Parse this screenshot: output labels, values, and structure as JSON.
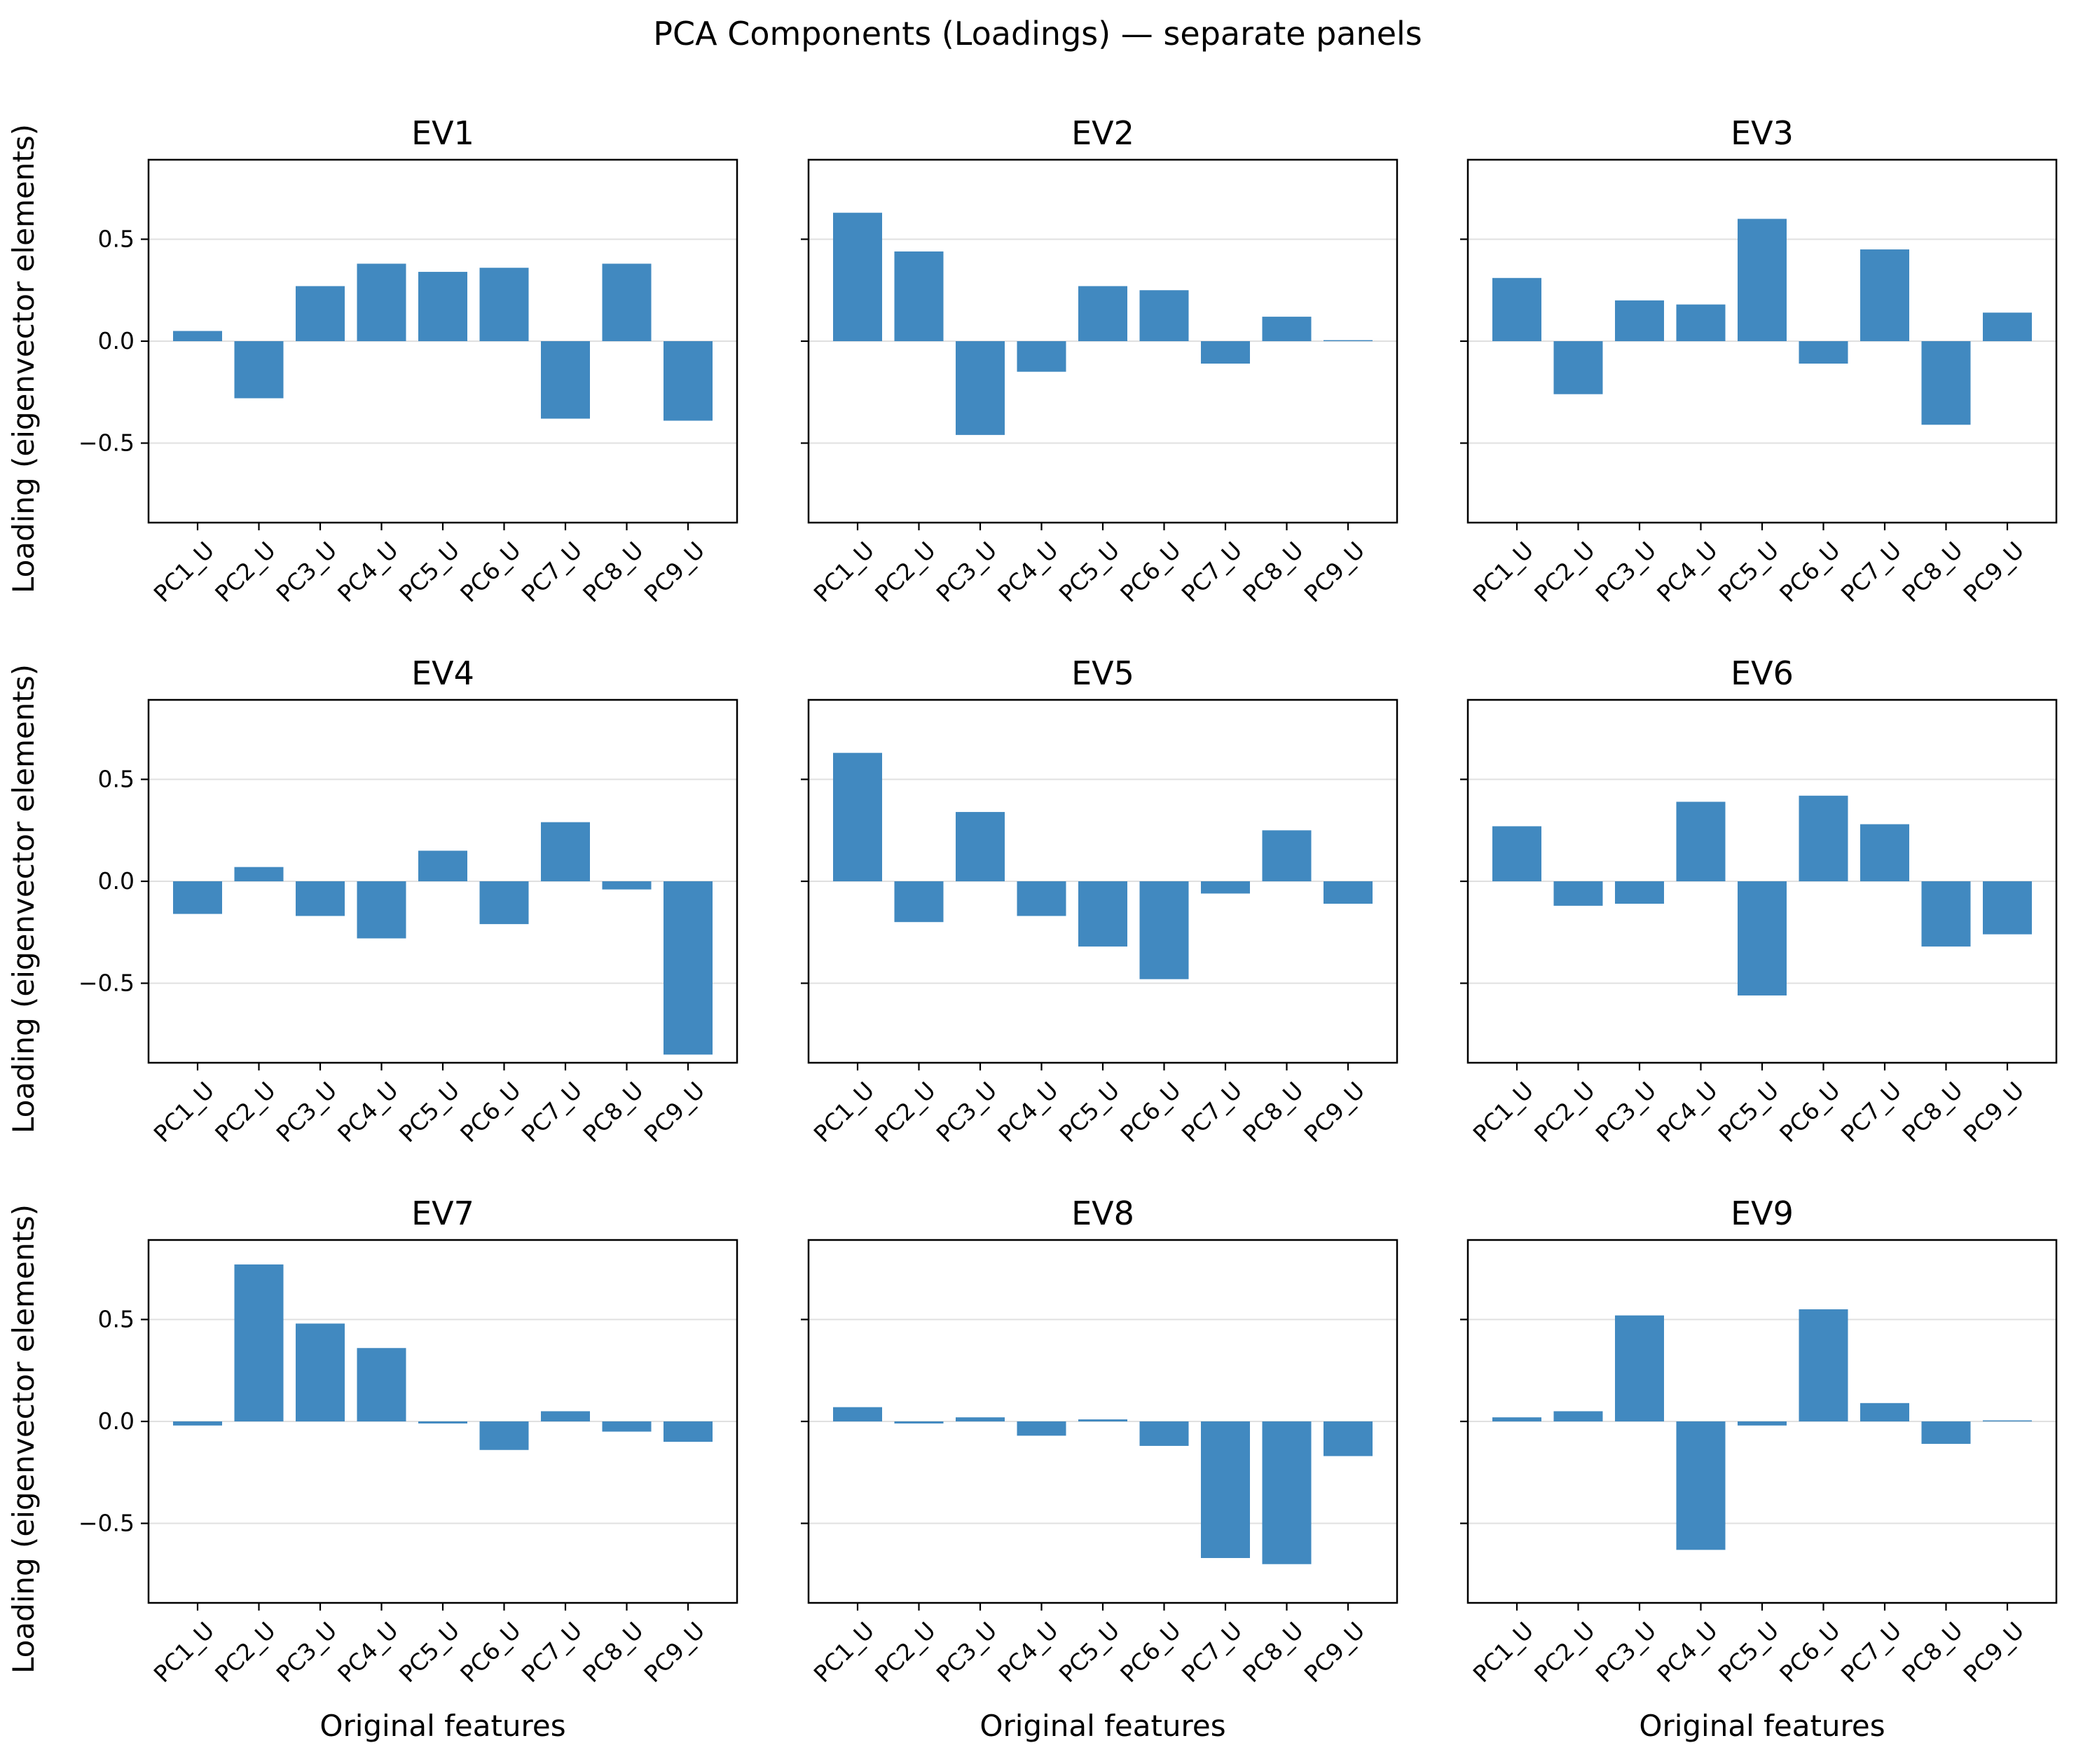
{
  "figure": {
    "suptitle": "PCA Components (Loadings) — separate panels",
    "ylabel": "Loading (eigenvector elements)",
    "xlabel": "Original features",
    "bar_color": "#4189c0"
  },
  "chart_data": {
    "type": "bar",
    "layout": "3x3 grid of panels, shared y axis",
    "categories": [
      "PC1_U",
      "PC2_U",
      "PC3_U",
      "PC4_U",
      "PC5_U",
      "PC6_U",
      "PC7_U",
      "PC8_U",
      "PC9_U"
    ],
    "ylim": [
      -0.89,
      0.89
    ],
    "yticks": [
      -0.5,
      0.0,
      0.5
    ],
    "ytick_labels": [
      "−0.5",
      "0.0",
      "0.5"
    ],
    "grid": "horizontal, at y ticks",
    "panels": [
      {
        "title": "EV1",
        "values": [
          0.05,
          -0.28,
          0.27,
          0.38,
          0.34,
          0.36,
          -0.38,
          0.38,
          -0.39
        ]
      },
      {
        "title": "EV2",
        "values": [
          0.63,
          0.44,
          -0.46,
          -0.15,
          0.27,
          0.25,
          -0.11,
          0.12,
          0.005
        ]
      },
      {
        "title": "EV3",
        "values": [
          0.31,
          -0.26,
          0.2,
          0.18,
          0.6,
          -0.11,
          0.45,
          -0.41,
          0.14
        ]
      },
      {
        "title": "EV4",
        "values": [
          -0.16,
          0.07,
          -0.17,
          -0.28,
          0.15,
          -0.21,
          0.29,
          -0.04,
          -0.85
        ]
      },
      {
        "title": "EV5",
        "values": [
          0.63,
          -0.2,
          0.34,
          -0.17,
          -0.32,
          -0.48,
          -0.06,
          0.25,
          -0.11
        ]
      },
      {
        "title": "EV6",
        "values": [
          0.27,
          -0.12,
          -0.11,
          0.39,
          -0.56,
          0.42,
          0.28,
          -0.32,
          -0.26
        ]
      },
      {
        "title": "EV7",
        "values": [
          -0.02,
          0.77,
          0.48,
          0.36,
          -0.01,
          -0.14,
          0.05,
          -0.05,
          -0.1
        ]
      },
      {
        "title": "EV8",
        "values": [
          0.07,
          -0.01,
          0.02,
          -0.07,
          0.01,
          -0.12,
          -0.67,
          -0.7,
          -0.17
        ]
      },
      {
        "title": "EV9",
        "values": [
          0.02,
          0.05,
          0.52,
          -0.63,
          -0.02,
          0.55,
          0.09,
          -0.11,
          0.005
        ]
      }
    ]
  }
}
